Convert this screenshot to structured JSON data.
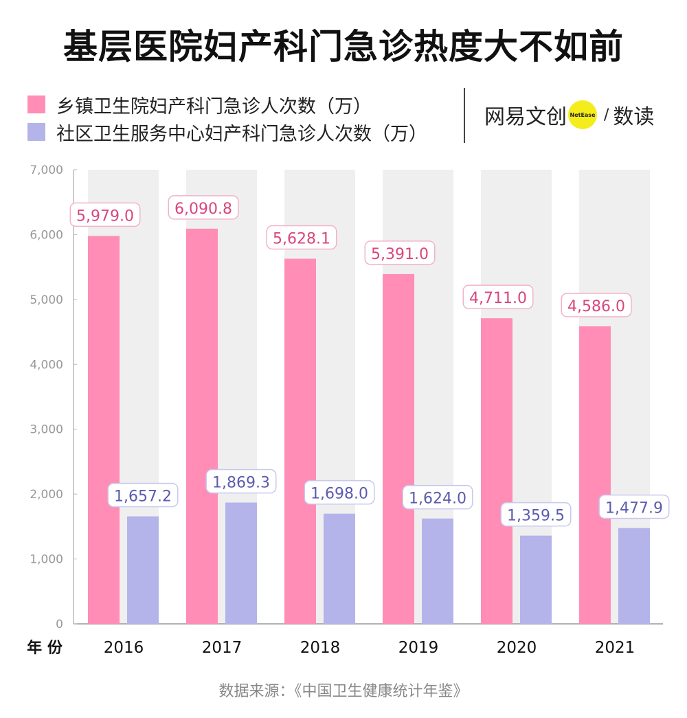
{
  "title": "基层医院妇产科门急诊热度大不如前",
  "logo": {
    "brand": "网易文创",
    "badge": "NetEase",
    "slash": "/",
    "product": "数读"
  },
  "source": "数据来源：《中国卫生健康统计年鉴》",
  "colors": {
    "series1": "#ff8db5",
    "series2": "#b4b4ea",
    "label1": "#d9467e",
    "label2": "#5b5bb0",
    "column_bg": "#efefef"
  },
  "chart_data": {
    "type": "bar",
    "xlabel": "年 份",
    "ylabel": "",
    "ylim": [
      0,
      7000
    ],
    "yticks": [
      "0",
      "1,000",
      "2,000",
      "3,000",
      "4,000",
      "5,000",
      "6,000",
      "7,000"
    ],
    "categories": [
      "2016",
      "2017",
      "2018",
      "2019",
      "2020",
      "2021"
    ],
    "legend_position": "top-left",
    "series": [
      {
        "name": "乡镇卫生院妇产科门急诊人次数（万）",
        "values": [
          5979.0,
          6090.8,
          5628.1,
          5391.0,
          4711.0,
          4586.0
        ],
        "labels": [
          "5,979.0",
          "6,090.8",
          "5,628.1",
          "5,391.0",
          "4,711.0",
          "4,586.0"
        ]
      },
      {
        "name": "社区卫生服务中心妇产科门急诊人次数（万）",
        "values": [
          1657.2,
          1869.3,
          1698.0,
          1624.0,
          1359.5,
          1477.9
        ],
        "labels": [
          "1,657.2",
          "1,869.3",
          "1,698.0",
          "1,624.0",
          "1,359.5",
          "1,477.9"
        ]
      }
    ]
  }
}
